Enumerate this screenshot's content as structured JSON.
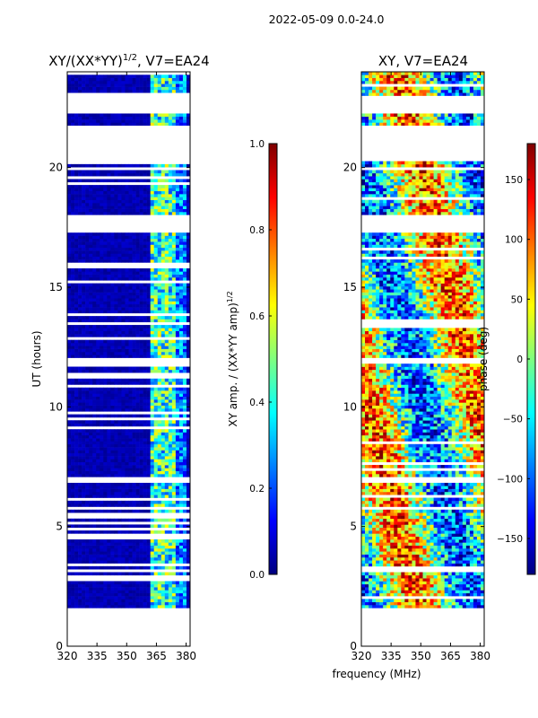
{
  "figure": {
    "suptitle": "2022-05-09 0.0-24.0",
    "xlabel": "frequency (MHz)"
  },
  "colormap": [
    "#00007f",
    "#0000ff",
    "#007fff",
    "#00ffff",
    "#7fff7f",
    "#ffff00",
    "#ff7f00",
    "#ff0000",
    "#7f0000"
  ],
  "chart_data": [
    {
      "type": "heatmap",
      "title_main": "XY/(XX*YY)",
      "title_sup": "1/2",
      "title_tail": ", V7=EA24",
      "ylabel": "UT (hours)",
      "xlim": [
        320,
        382
      ],
      "ylim": [
        0,
        24
      ],
      "xticks": [
        "320",
        "335",
        "350",
        "365",
        "380"
      ],
      "xtick_values": [
        320,
        335,
        350,
        365,
        380
      ],
      "yticks": [
        "0",
        "5",
        "10",
        "15",
        "20"
      ],
      "ytick_values": [
        0,
        5,
        10,
        15,
        20
      ],
      "data_time_range": [
        1.6,
        24
      ],
      "gaps_hours": [
        [
          17.3,
          18.05
        ],
        [
          20.25,
          21.8
        ],
        [
          22.25,
          22.95
        ],
        [
          11.85,
          12.0
        ],
        [
          6.85,
          6.95
        ],
        [
          5.75,
          5.85
        ]
      ],
      "colorbar": {
        "label_main": "XY amp. / (XX*YY amp)",
        "label_sup": "1/2",
        "range": [
          0.0,
          1.0
        ],
        "ticks": [
          "0.0",
          "0.2",
          "0.4",
          "0.6",
          "0.8",
          "1.0"
        ],
        "tick_values": [
          0.0,
          0.2,
          0.4,
          0.6,
          0.8,
          1.0
        ]
      }
    },
    {
      "type": "heatmap",
      "title": "XY, V7=EA24",
      "xlim": [
        320,
        382
      ],
      "ylim": [
        0,
        24
      ],
      "xticks": [
        "320",
        "335",
        "350",
        "365",
        "380"
      ],
      "xtick_values": [
        320,
        335,
        350,
        365,
        380
      ],
      "yticks": [
        "0",
        "5",
        "10",
        "15",
        "20"
      ],
      "ytick_values": [
        0,
        5,
        10,
        15,
        20
      ],
      "data_time_range": [
        1.6,
        24
      ],
      "gaps_hours": [
        [
          17.3,
          18.05
        ],
        [
          20.25,
          21.8
        ],
        [
          22.25,
          22.95
        ],
        [
          11.85,
          12.0
        ],
        [
          6.85,
          6.95
        ],
        [
          5.75,
          5.85
        ]
      ],
      "colorbar": {
        "label": "phase (deg)",
        "range": [
          -180,
          180
        ],
        "ticks": [
          "−150",
          "−100",
          "−50",
          "0",
          "50",
          "100",
          "150"
        ],
        "tick_values": [
          -150,
          -100,
          -50,
          0,
          50,
          100,
          150
        ]
      }
    }
  ]
}
